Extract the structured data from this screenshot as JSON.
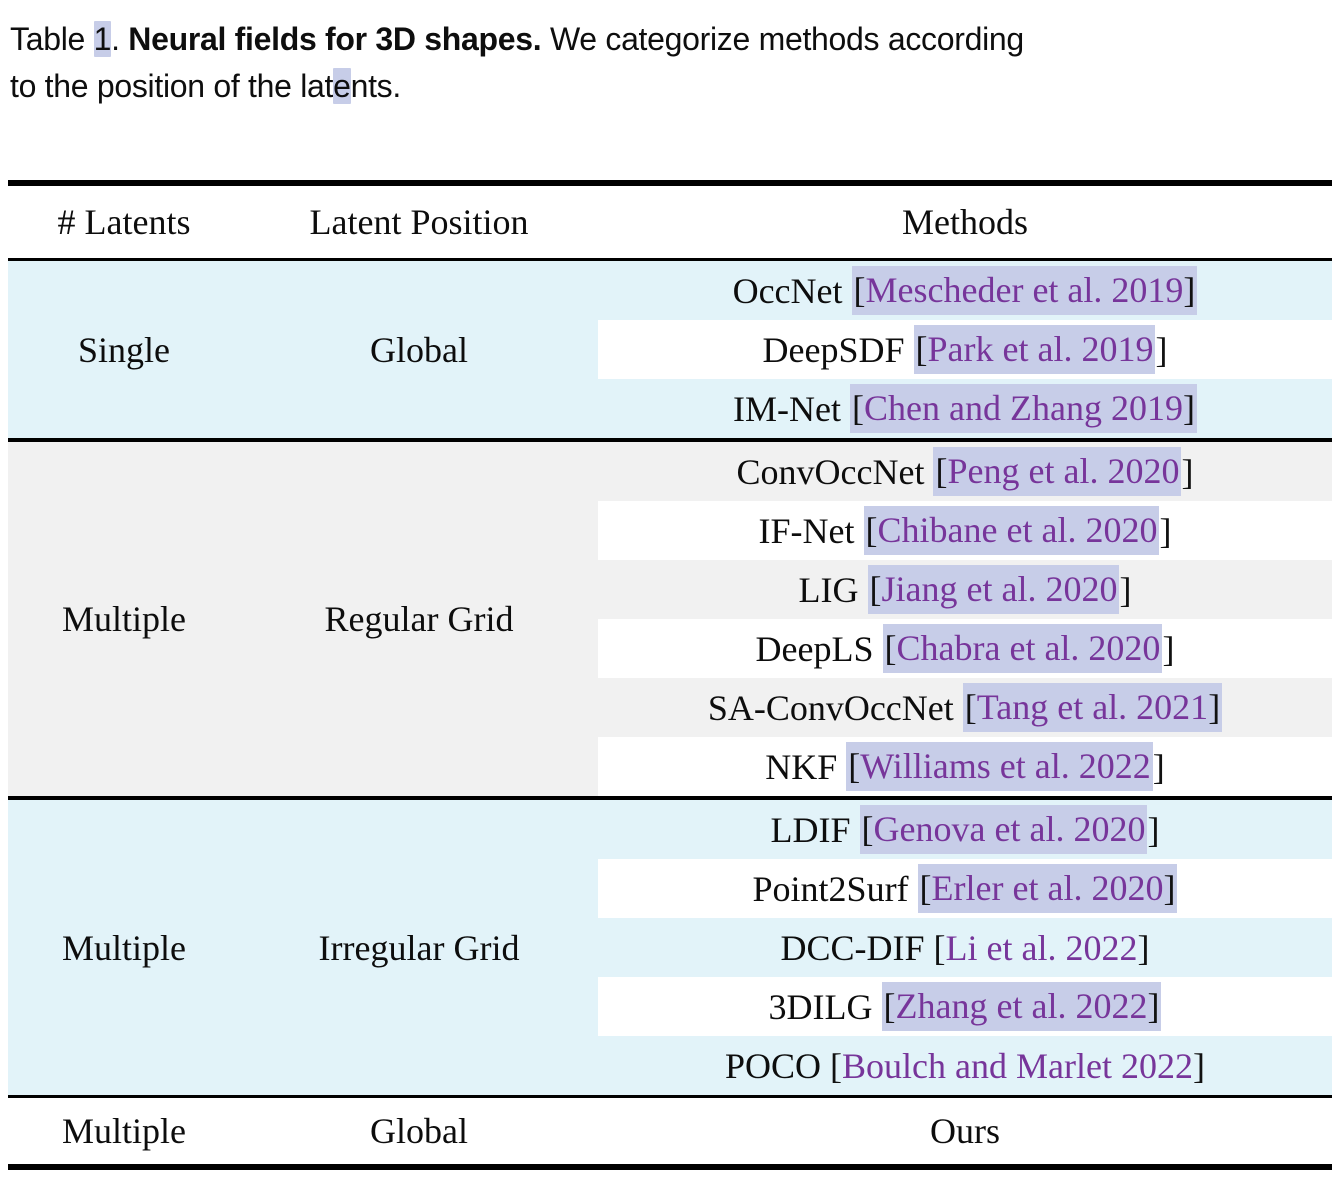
{
  "caption": {
    "segments": [
      {
        "text": "Table ",
        "style": "normal"
      },
      {
        "text": "1",
        "style": "link-highlight"
      },
      {
        "text": ".  ",
        "style": "normal"
      },
      {
        "text": "Neural fields for 3D shapes.",
        "style": "bold"
      },
      {
        "text": " We categorize methods according",
        "style": "normal"
      },
      {
        "text": "",
        "style": "linebreak"
      },
      {
        "text": "to the position of the lat",
        "style": "normal"
      },
      {
        "text": "e",
        "style": "link-highlight"
      },
      {
        "text": "nts.",
        "style": "normal"
      }
    ]
  },
  "table": {
    "headers": [
      "# Latents",
      "Latent Position",
      "Methods"
    ],
    "groups": [
      {
        "latents": "Single",
        "position": "Global",
        "bg": "cyan",
        "methods": [
          {
            "name": "OccNet",
            "citation": "Mescheder et al. 2019",
            "highlighted": true,
            "close_bracket_highlighted": true
          },
          {
            "name": "DeepSDF",
            "citation": "Park et al. 2019",
            "highlighted": true,
            "close_bracket_highlighted": false
          },
          {
            "name": "IM-Net",
            "citation": "Chen and Zhang 2019",
            "highlighted": true,
            "close_bracket_highlighted": true
          }
        ]
      },
      {
        "latents": "Multiple",
        "position": "Regular Grid",
        "bg": "gray",
        "methods": [
          {
            "name": "ConvOccNet",
            "citation": "Peng et al. 2020",
            "highlighted": true,
            "close_bracket_highlighted": false
          },
          {
            "name": "IF-Net",
            "citation": "Chibane et al. 2020",
            "highlighted": true,
            "close_bracket_highlighted": false
          },
          {
            "name": "LIG",
            "citation": "Jiang et al. 2020",
            "highlighted": true,
            "close_bracket_highlighted": false
          },
          {
            "name": "DeepLS",
            "citation": "Chabra et al. 2020",
            "highlighted": true,
            "close_bracket_highlighted": false
          },
          {
            "name": "SA-ConvOccNet",
            "citation": "Tang et al. 2021",
            "highlighted": true,
            "close_bracket_highlighted": true
          },
          {
            "name": "NKF",
            "citation": "Williams et al. 2022",
            "highlighted": true,
            "close_bracket_highlighted": false
          }
        ]
      },
      {
        "latents": "Multiple",
        "position": "Irregular Grid",
        "bg": "cyan",
        "methods": [
          {
            "name": "LDIF",
            "citation": "Genova et al. 2020",
            "highlighted": true,
            "close_bracket_highlighted": false
          },
          {
            "name": "Point2Surf",
            "citation": "Erler et al. 2020",
            "highlighted": true,
            "close_bracket_highlighted": true
          },
          {
            "name": "DCC-DIF",
            "citation": "Li et al. 2022",
            "highlighted": false,
            "close_bracket_highlighted": false
          },
          {
            "name": "3DILG",
            "citation": "Zhang et al. 2022",
            "highlighted": true,
            "close_bracket_highlighted": true
          },
          {
            "name": "POCO",
            "citation": "Boulch and Marlet 2022",
            "highlighted": false,
            "close_bracket_highlighted": false
          }
        ]
      },
      {
        "latents": "Multiple",
        "position": "Global",
        "bg": "white",
        "methods": [
          {
            "name": "Ours",
            "citation": null,
            "highlighted": false,
            "close_bracket_highlighted": false
          }
        ]
      }
    ]
  },
  "colors": {
    "group_cyan": "#e2f3f9",
    "group_gray": "#f1f1f1",
    "group_white": "#ffffff",
    "citation_highlight": "#c7cde8",
    "citation_text": "#77359a"
  }
}
